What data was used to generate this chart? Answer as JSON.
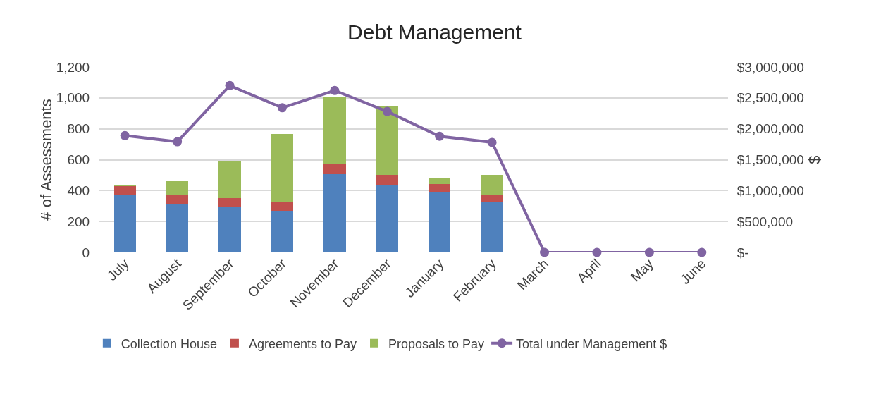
{
  "chart_data": {
    "type": "bar",
    "title": "Debt Management",
    "ylabel": "# of Assessments",
    "y2label": "$",
    "categories": [
      "July",
      "August",
      "September",
      "October",
      "November",
      "December",
      "January",
      "February",
      "March",
      "April",
      "May",
      "June"
    ],
    "stacked": true,
    "series": [
      {
        "name": "Collection House",
        "color": "#4f81bd",
        "values": [
          375,
          317,
          298,
          269,
          507,
          440,
          388,
          323,
          null,
          null,
          null,
          null
        ]
      },
      {
        "name": "Agreements to Pay",
        "color": "#c0504d",
        "values": [
          57,
          52,
          52,
          61,
          65,
          60,
          56,
          47,
          null,
          null,
          null,
          null
        ]
      },
      {
        "name": "Proposals to Pay",
        "color": "#9bbb59",
        "values": [
          8,
          94,
          243,
          436,
          435,
          444,
          35,
          130,
          null,
          null,
          null,
          null
        ]
      },
      {
        "name": "Total under Management $",
        "type": "line",
        "axis": "y2",
        "color": "#8064a2",
        "marker": "circle",
        "line_style": "solid",
        "values": [
          1890000,
          1790000,
          2700000,
          2340000,
          2620000,
          2280000,
          1880000,
          1780000,
          0,
          0,
          0,
          0
        ]
      }
    ],
    "ylim": [
      0,
      1200
    ],
    "yticks": [
      0,
      200,
      400,
      600,
      800,
      {
        "value": 1000,
        "label": "1,000"
      },
      {
        "value": 1200,
        "label": "1,200"
      }
    ],
    "y2lim": [
      0,
      3000000
    ],
    "y2ticks": [
      {
        "value": 0,
        "label": "$-"
      },
      {
        "value": 500000,
        "label": "$500,000"
      },
      {
        "value": 1000000,
        "label": "$1,000,000"
      },
      {
        "value": 1500000,
        "label": "$1,500,000"
      },
      {
        "value": 2000000,
        "label": "$2,000,000"
      },
      {
        "value": 2500000,
        "label": "$2,500,000"
      },
      {
        "value": 3000000,
        "label": "$3,000,000"
      }
    ],
    "grid": "y",
    "legend": "bottom"
  }
}
